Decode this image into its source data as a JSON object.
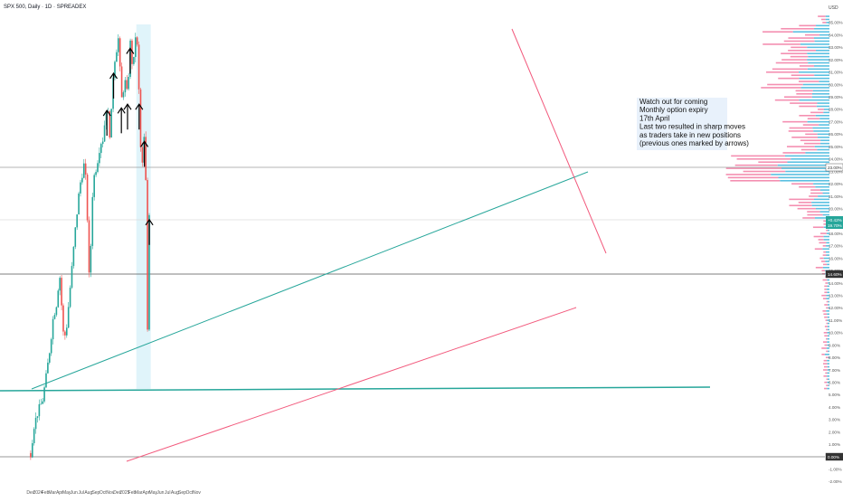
{
  "chart_data": {
    "type": "line",
    "title": "SPX 500, Daily · 1D · SPREADEX",
    "y_axis_label": "USD",
    "y_scale": "percent",
    "ylim": [
      -2.0,
      35.9
    ],
    "y_ticks": [
      "-2.00%",
      "-1.00%",
      "0.00%",
      "1.00%",
      "2.00%",
      "3.00%",
      "4.00%",
      "5.00%",
      "6.00%",
      "7.00%",
      "8.00%",
      "9.00%",
      "10.00%",
      "11.00%",
      "12.00%",
      "13.00%",
      "14.00%",
      "15.00%",
      "16.00%",
      "17.00%",
      "18.00%",
      "19.00%",
      "20.00%",
      "21.00%",
      "22.00%",
      "23.00%",
      "24.00%",
      "25.00%",
      "26.00%",
      "27.00%",
      "28.00%",
      "29.00%",
      "30.00%",
      "31.00%",
      "32.00%",
      "33.00%",
      "34.00%",
      "35.00%"
    ],
    "x_ticks": [
      "Dec",
      "2024",
      "Feb",
      "Mar",
      "Apr",
      "May",
      "Jun",
      "Jul",
      "Aug",
      "Sep",
      "Oct",
      "Nov",
      "Dec",
      "2025",
      "Feb",
      "Mar",
      "Apr",
      "May",
      "Jun",
      "Jul",
      "Aug",
      "Sep",
      "Oct",
      "Nov"
    ],
    "series": [
      {
        "x": [
          "2023-12-01",
          "2023-12-15",
          "2024-01-02",
          "2024-01-20",
          "2024-02-05",
          "2024-02-20",
          "2024-03-05",
          "2024-03-20",
          "2024-04-01",
          "2024-04-19",
          "2024-05-01",
          "2024-05-20",
          "2024-06-05",
          "2024-06-25",
          "2024-07-16",
          "2024-07-25",
          "2024-08-05",
          "2024-08-20",
          "2024-09-06",
          "2024-09-20",
          "2024-10-01",
          "2024-10-18",
          "2024-11-01",
          "2024-11-15",
          "2024-12-06",
          "2024-12-18",
          "2025-01-02",
          "2025-01-13",
          "2025-01-24",
          "2025-02-05",
          "2025-02-19",
          "2025-03-03",
          "2025-03-13",
          "2025-03-25",
          "2025-04-01",
          "2025-04-04",
          "2025-04-08",
          "2025-04-09",
          "2025-04-15"
        ],
        "values": [
          0.3,
          2.5,
          3.7,
          4.5,
          6.5,
          8.7,
          11.2,
          12.4,
          14.9,
          9.3,
          10.5,
          14.5,
          18.0,
          21.8,
          23.8,
          20.8,
          13.7,
          22.2,
          23.6,
          25.3,
          25.6,
          28.5,
          25.6,
          31.5,
          33.8,
          28.7,
          30.3,
          29.0,
          33.5,
          31.0,
          34.9,
          29.0,
          22.5,
          26.0,
          21.5,
          15.0,
          9.3,
          20.0,
          19.7
        ]
      }
    ],
    "grid": false,
    "annotations": {
      "note_lines": [
        "Watch out for coming",
        "Monthly option expiry",
        "17th April",
        "Last two resulted in sharp moves",
        "as traders take in new positions",
        "(previous ones marked by arrows)"
      ],
      "arrow_dates": [
        "2024-10-18",
        "2024-11-15",
        "2024-12-18",
        "2025-01-13",
        "2025-01-24",
        "2025-03-03",
        "2025-03-25",
        "2025-04-15"
      ],
      "level_labels": [
        "23.00%",
        "14.60%",
        "0.00%"
      ],
      "price_label": "19.70%",
      "price_change": "+0.42%"
    }
  },
  "colors": {
    "up": "#26a69a",
    "down": "#ef5350",
    "trend_green": "#26a69a",
    "trend_red": "#f25a7d",
    "highlight": "#e0f4fa",
    "profile_blue": "#5bc0e1",
    "profile_pink": "#f48fb1"
  }
}
